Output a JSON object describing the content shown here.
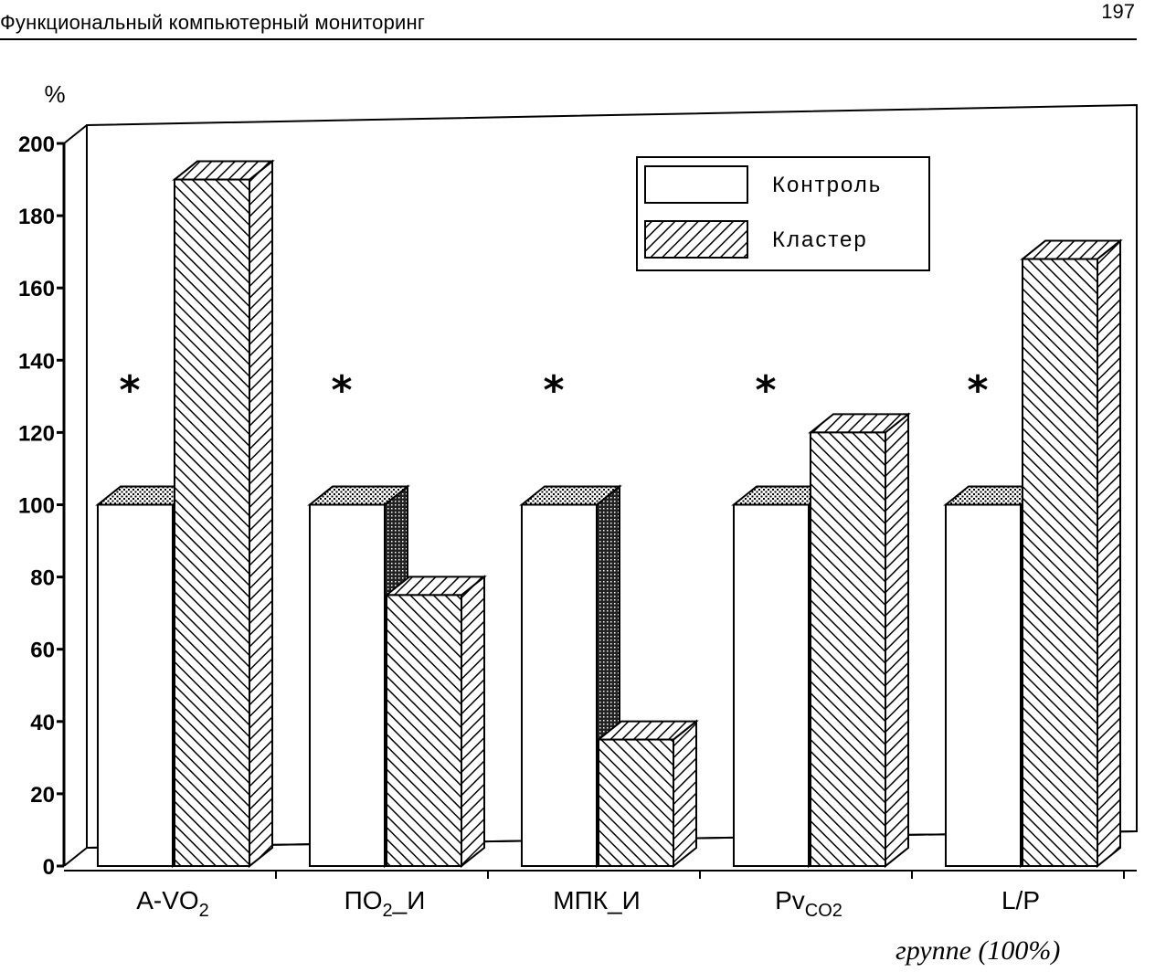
{
  "header": {
    "running_title": "Функциональный компьютерный мониторинг",
    "page_number": "197"
  },
  "caption_fragment": "группе (100%)",
  "chart_data": {
    "type": "bar",
    "title": "",
    "xlabel": "",
    "ylabel": "%",
    "ylim": [
      0,
      200
    ],
    "yticks": [
      0,
      20,
      40,
      60,
      80,
      100,
      120,
      140,
      160,
      180,
      200
    ],
    "categories": [
      {
        "base": "A-VO",
        "sub": "2",
        "tail": ""
      },
      {
        "base": "ПО",
        "sub": "2",
        "tail": "_И"
      },
      {
        "base": "МПК_И",
        "sub": "",
        "tail": ""
      },
      {
        "base": "Pv",
        "sub": "CO2",
        "tail": ""
      },
      {
        "base": "L/P",
        "sub": "",
        "tail": ""
      }
    ],
    "series": [
      {
        "name": "Контроль",
        "values": [
          100,
          100,
          100,
          100,
          100
        ],
        "color": "#ffffff"
      },
      {
        "name": "Кластер",
        "values": [
          190,
          75,
          35,
          120,
          168
        ],
        "color": "hatched"
      }
    ],
    "annotations": [
      "*",
      "*",
      "*",
      "*",
      "*"
    ],
    "legend_position": "top-right",
    "grid": false
  }
}
